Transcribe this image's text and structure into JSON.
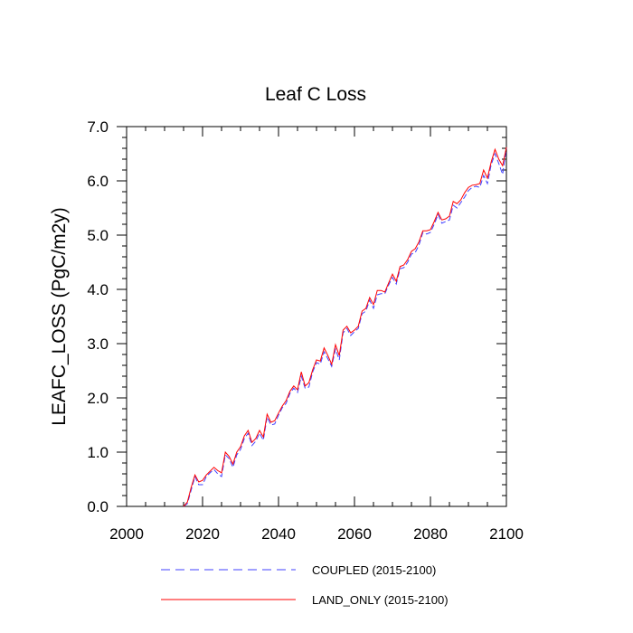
{
  "chart_data": {
    "type": "line",
    "title": "Leaf C Loss",
    "xlabel": "",
    "ylabel": "LEAFC_LOSS  (PgC/m2y)",
    "xlim": [
      2000,
      2100
    ],
    "ylim": [
      0.0,
      7.0
    ],
    "x_ticks": [
      2000,
      2020,
      2040,
      2060,
      2080,
      2100
    ],
    "x_tick_labels": [
      "2000",
      "2020",
      "2040",
      "2060",
      "2080",
      "2100"
    ],
    "y_ticks": [
      0.0,
      1.0,
      2.0,
      3.0,
      4.0,
      5.0,
      6.0,
      7.0
    ],
    "y_tick_labels": [
      "0.0",
      "1.0",
      "2.0",
      "3.0",
      "4.0",
      "5.0",
      "6.0",
      "7.0"
    ],
    "grid": false,
    "legend_position": "bottom",
    "x": [
      2015,
      2016,
      2017,
      2018,
      2019,
      2020,
      2021,
      2022,
      2023,
      2024,
      2025,
      2026,
      2027,
      2028,
      2029,
      2030,
      2031,
      2032,
      2033,
      2034,
      2035,
      2036,
      2037,
      2038,
      2039,
      2040,
      2041,
      2042,
      2043,
      2044,
      2045,
      2046,
      2047,
      2048,
      2049,
      2050,
      2051,
      2052,
      2053,
      2054,
      2055,
      2056,
      2057,
      2058,
      2059,
      2060,
      2061,
      2062,
      2063,
      2064,
      2065,
      2066,
      2067,
      2068,
      2069,
      2070,
      2071,
      2072,
      2073,
      2074,
      2075,
      2076,
      2077,
      2078,
      2079,
      2080,
      2081,
      2082,
      2083,
      2084,
      2085,
      2086,
      2087,
      2088,
      2089,
      2090,
      2091,
      2092,
      2093,
      2094,
      2095,
      2096,
      2097,
      2098,
      2099,
      2100
    ],
    "series": [
      {
        "name": "COUPLED (2015-2100)",
        "color": "#4040ff",
        "dash": "dashed",
        "values": [
          0.0,
          0.05,
          0.3,
          0.55,
          0.4,
          0.4,
          0.55,
          0.62,
          0.68,
          0.6,
          0.55,
          0.95,
          0.88,
          0.72,
          0.95,
          1.05,
          1.25,
          1.35,
          1.12,
          1.2,
          1.35,
          1.22,
          1.65,
          1.5,
          1.52,
          1.68,
          1.82,
          1.9,
          2.08,
          2.18,
          2.1,
          2.4,
          2.18,
          2.2,
          2.48,
          2.65,
          2.62,
          2.85,
          2.72,
          2.58,
          2.9,
          2.7,
          3.2,
          3.28,
          3.15,
          3.22,
          3.28,
          3.55,
          3.6,
          3.8,
          3.65,
          3.9,
          3.92,
          3.92,
          4.08,
          4.22,
          4.1,
          4.38,
          4.4,
          4.5,
          4.65,
          4.68,
          4.82,
          5.05,
          5.02,
          5.05,
          5.2,
          5.38,
          5.22,
          5.25,
          5.28,
          5.55,
          5.5,
          5.6,
          5.7,
          5.82,
          5.88,
          5.9,
          5.88,
          6.1,
          5.95,
          6.3,
          6.5,
          6.32,
          6.12,
          6.6
        ]
      },
      {
        "name": "LAND_ONLY (2015-2100)",
        "color": "#ff0000",
        "dash": "solid",
        "values": [
          0.0,
          0.08,
          0.35,
          0.58,
          0.45,
          0.48,
          0.58,
          0.65,
          0.72,
          0.66,
          0.62,
          1.0,
          0.92,
          0.78,
          1.0,
          1.1,
          1.3,
          1.4,
          1.18,
          1.25,
          1.4,
          1.28,
          1.7,
          1.55,
          1.58,
          1.72,
          1.85,
          1.95,
          2.12,
          2.22,
          2.15,
          2.48,
          2.22,
          2.28,
          2.52,
          2.7,
          2.68,
          2.92,
          2.78,
          2.62,
          2.98,
          2.78,
          3.25,
          3.32,
          3.2,
          3.25,
          3.32,
          3.6,
          3.65,
          3.85,
          3.72,
          3.98,
          3.98,
          3.95,
          4.12,
          4.28,
          4.15,
          4.42,
          4.45,
          4.55,
          4.7,
          4.75,
          4.88,
          5.08,
          5.08,
          5.1,
          5.25,
          5.42,
          5.28,
          5.3,
          5.35,
          5.62,
          5.58,
          5.65,
          5.78,
          5.88,
          5.92,
          5.93,
          5.95,
          6.2,
          6.05,
          6.35,
          6.58,
          6.4,
          6.28,
          6.62
        ]
      }
    ]
  }
}
